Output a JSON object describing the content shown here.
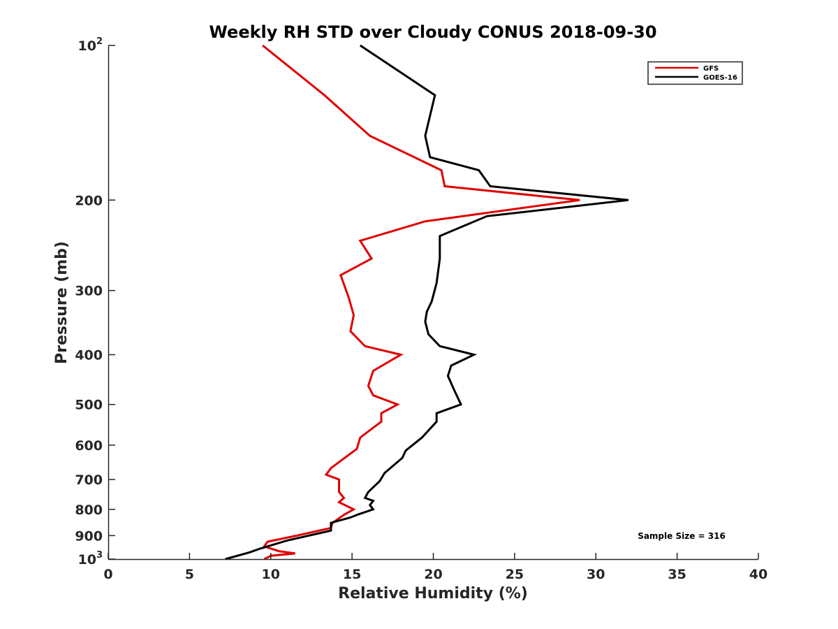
{
  "chart_data": {
    "type": "line",
    "title": "Weekly RH STD over Cloudy CONUS 2018-09-30",
    "xlabel": "Relative Humidity (%)",
    "ylabel": "Pressure (mb)",
    "xlim": [
      0,
      40
    ],
    "ylim": [
      100,
      1000
    ],
    "y_scale": "log",
    "y_reversed": true,
    "x_ticks": [
      0,
      5,
      10,
      15,
      20,
      25,
      30,
      35,
      40
    ],
    "x_tick_labels": [
      "0",
      "5",
      "10",
      "15",
      "20",
      "25",
      "30",
      "35",
      "40"
    ],
    "y_ticks": [
      {
        "value": 100,
        "base": "10",
        "exp": "2"
      },
      {
        "value": 200,
        "base": "200",
        "exp": ""
      },
      {
        "value": 300,
        "base": "300",
        "exp": ""
      },
      {
        "value": 400,
        "base": "400",
        "exp": ""
      },
      {
        "value": 500,
        "base": "500",
        "exp": ""
      },
      {
        "value": 600,
        "base": "600",
        "exp": ""
      },
      {
        "value": 700,
        "base": "700",
        "exp": ""
      },
      {
        "value": 800,
        "base": "800",
        "exp": ""
      },
      {
        "value": 900,
        "base": "900",
        "exp": ""
      },
      {
        "value": 1000,
        "base": "10",
        "exp": "3"
      }
    ],
    "grid": false,
    "legend_position": "top-right",
    "annotation": "Sample Size = 316",
    "series": [
      {
        "name": "GFS",
        "color": "#e00000",
        "points": [
          [
            9.5,
            100
          ],
          [
            13.3,
            125
          ],
          [
            16.1,
            150
          ],
          [
            20.5,
            175
          ],
          [
            20.7,
            188
          ],
          [
            29.0,
            200
          ],
          [
            19.5,
            220
          ],
          [
            15.5,
            240
          ],
          [
            16.2,
            260
          ],
          [
            14.3,
            280
          ],
          [
            14.8,
            310
          ],
          [
            15.1,
            335
          ],
          [
            14.9,
            360
          ],
          [
            15.8,
            385
          ],
          [
            18.0,
            400
          ],
          [
            16.3,
            430
          ],
          [
            16.0,
            460
          ],
          [
            16.3,
            480
          ],
          [
            17.8,
            500
          ],
          [
            16.8,
            520
          ],
          [
            16.8,
            540
          ],
          [
            15.5,
            580
          ],
          [
            15.3,
            610
          ],
          [
            13.7,
            665
          ],
          [
            13.4,
            685
          ],
          [
            14.2,
            700
          ],
          [
            14.2,
            740
          ],
          [
            14.5,
            760
          ],
          [
            14.2,
            775
          ],
          [
            15.1,
            800
          ],
          [
            14.5,
            820
          ],
          [
            13.8,
            850
          ],
          [
            13.7,
            870
          ],
          [
            11.6,
            900
          ],
          [
            9.8,
            925
          ],
          [
            9.6,
            945
          ],
          [
            10.5,
            965
          ],
          [
            11.5,
            975
          ],
          [
            10.0,
            985
          ],
          [
            9.6,
            1000
          ]
        ]
      },
      {
        "name": "GOES-16",
        "color": "#000000",
        "points": [
          [
            15.5,
            100
          ],
          [
            20.1,
            125
          ],
          [
            19.5,
            150
          ],
          [
            19.8,
            165
          ],
          [
            22.8,
            175
          ],
          [
            23.5,
            188
          ],
          [
            32.0,
            200
          ],
          [
            23.3,
            215
          ],
          [
            20.4,
            235
          ],
          [
            20.4,
            260
          ],
          [
            20.2,
            290
          ],
          [
            19.9,
            315
          ],
          [
            19.6,
            330
          ],
          [
            19.5,
            345
          ],
          [
            19.7,
            365
          ],
          [
            20.4,
            385
          ],
          [
            22.5,
            400
          ],
          [
            21.1,
            420
          ],
          [
            20.9,
            440
          ],
          [
            21.3,
            470
          ],
          [
            21.7,
            500
          ],
          [
            20.2,
            520
          ],
          [
            20.2,
            540
          ],
          [
            19.3,
            580
          ],
          [
            18.3,
            615
          ],
          [
            18.1,
            635
          ],
          [
            17.0,
            680
          ],
          [
            16.7,
            705
          ],
          [
            16.0,
            740
          ],
          [
            15.8,
            760
          ],
          [
            16.3,
            770
          ],
          [
            16.1,
            785
          ],
          [
            16.3,
            800
          ],
          [
            15.3,
            820
          ],
          [
            14.9,
            830
          ],
          [
            13.7,
            850
          ],
          [
            13.7,
            880
          ],
          [
            11.0,
            920
          ],
          [
            9.3,
            955
          ],
          [
            8.7,
            970
          ],
          [
            7.2,
            1000
          ]
        ]
      }
    ]
  }
}
